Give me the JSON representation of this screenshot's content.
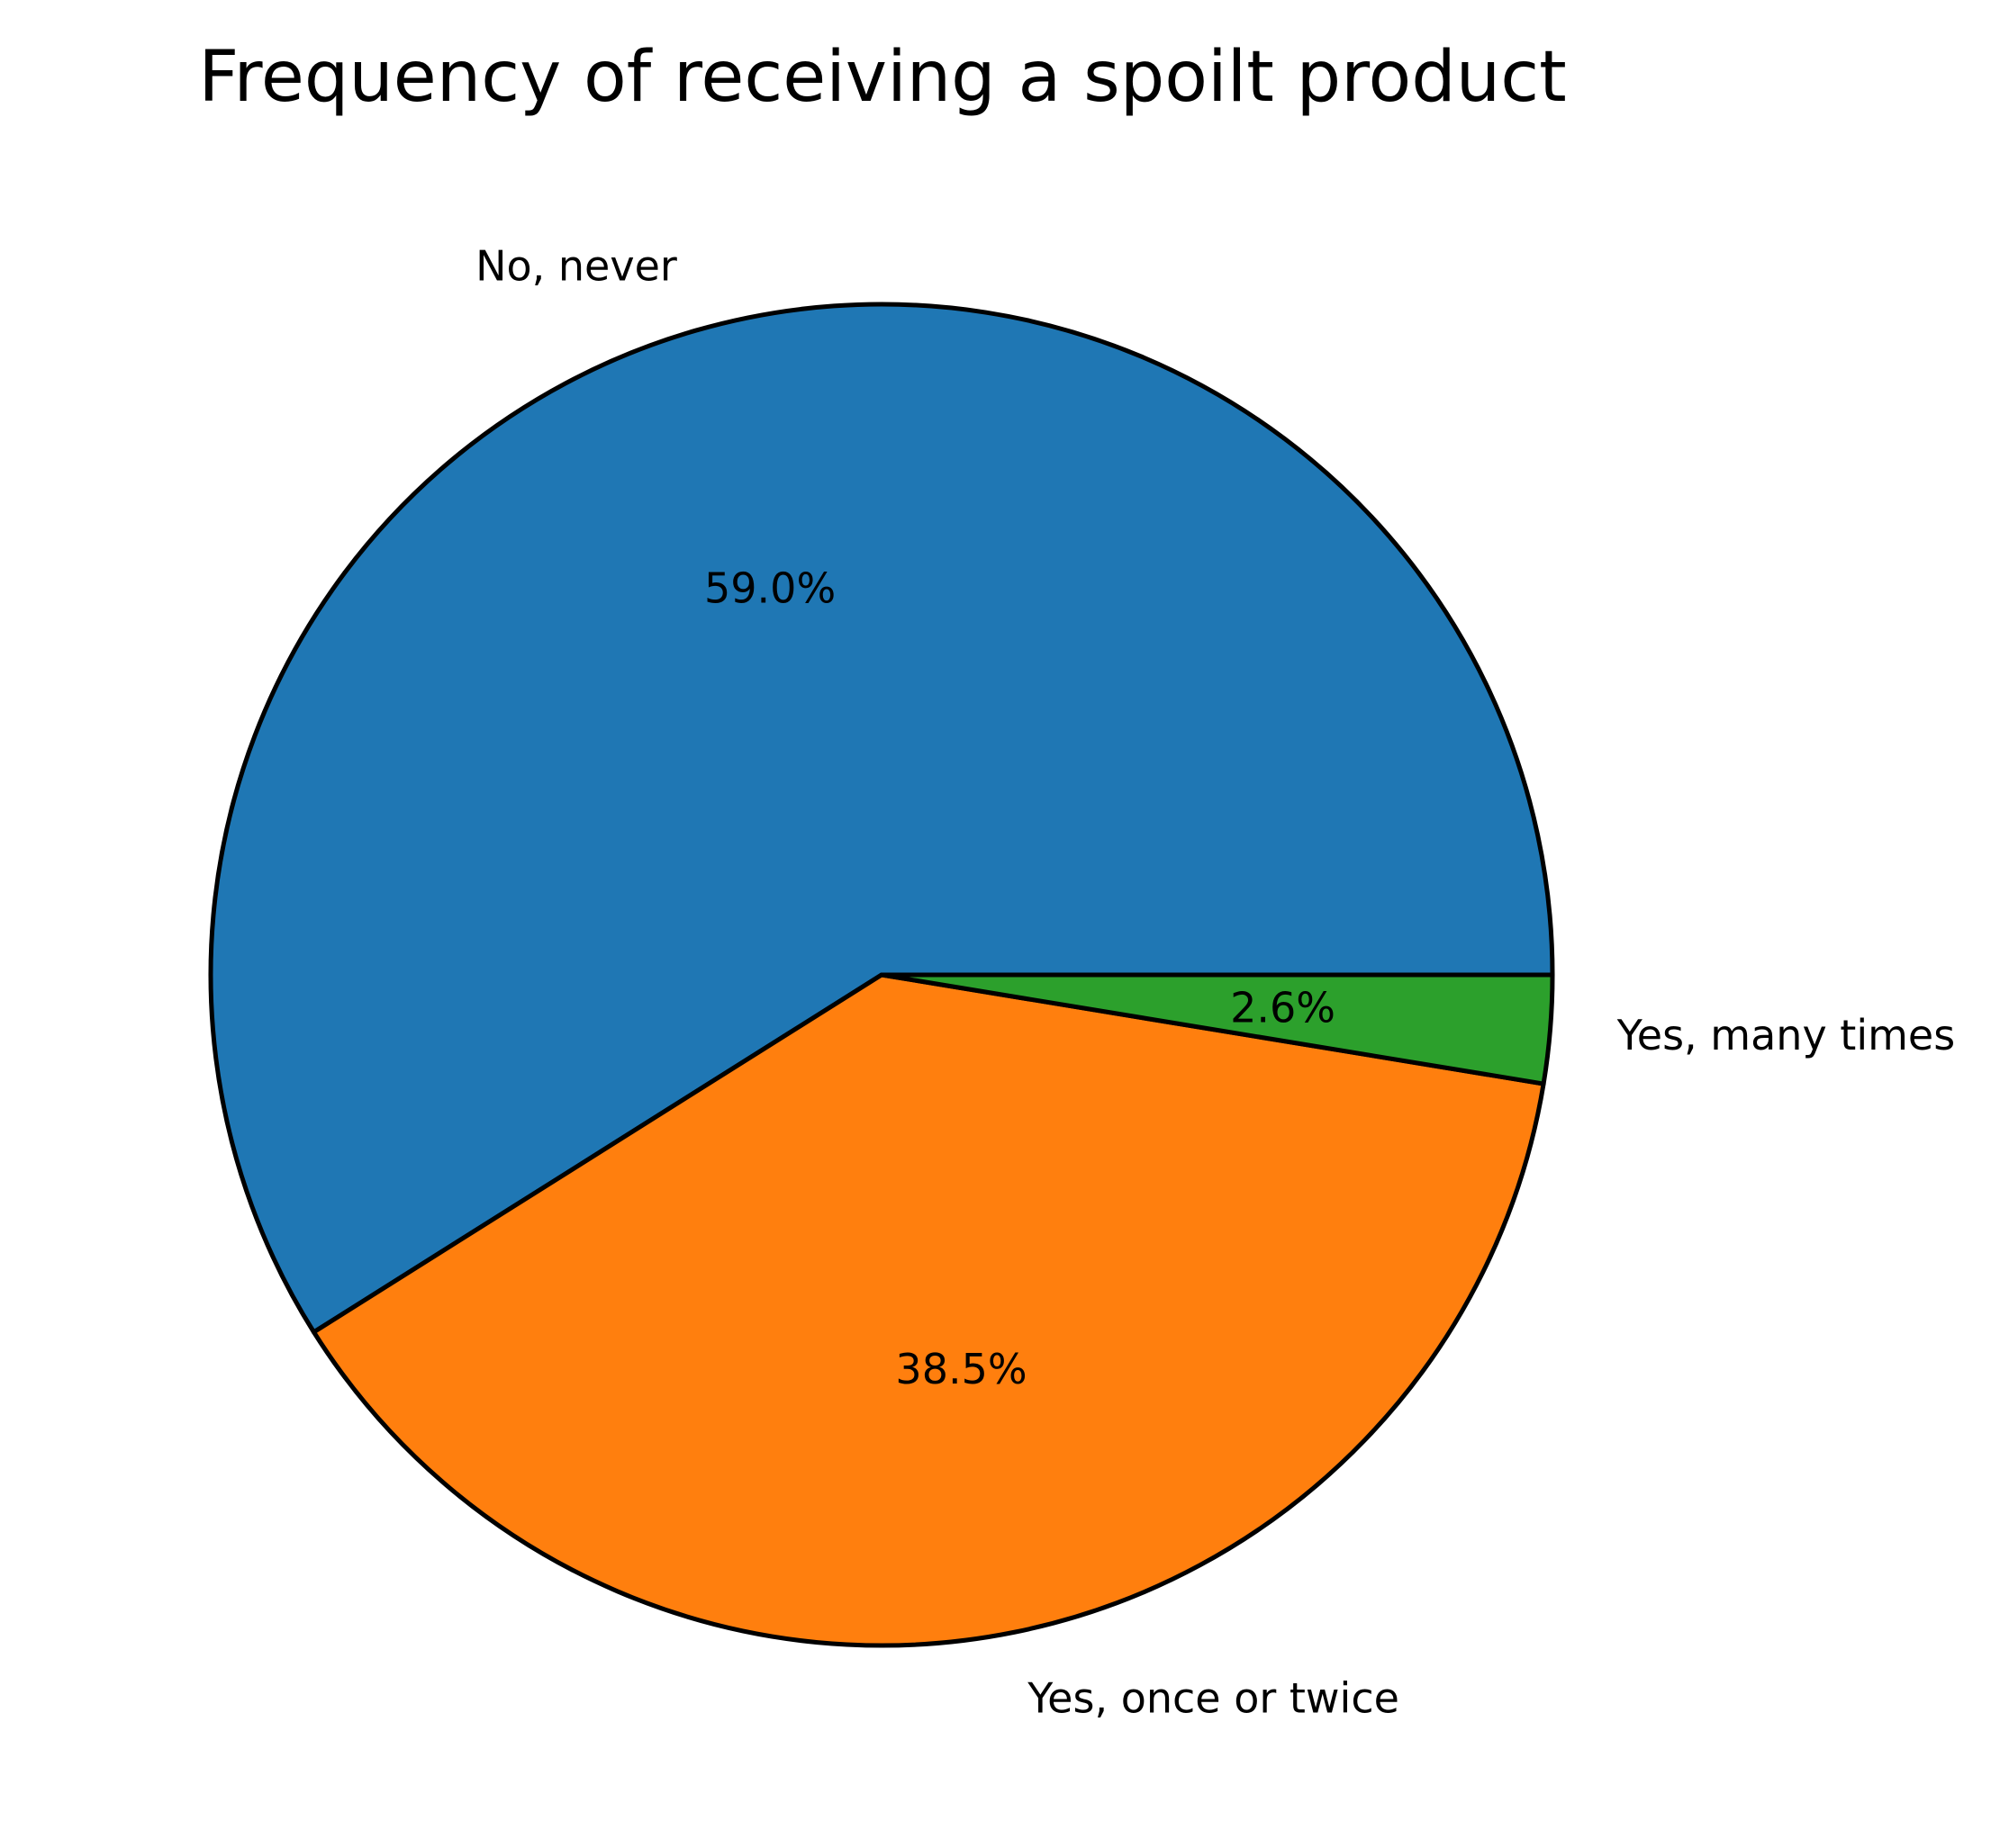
{
  "chart_data": {
    "type": "pie",
    "title": "Frequency of receiving a spoilt product",
    "slices": [
      {
        "label": "No, never",
        "value": 59.0,
        "pct_label": "59.0%",
        "color": "#1f77b4"
      },
      {
        "label": "Yes, once or twice",
        "value": 38.5,
        "pct_label": "38.5%",
        "color": "#ff7f0e"
      },
      {
        "label": "Yes, many times",
        "value": 2.6,
        "pct_label": "2.6%",
        "color": "#2ca02c"
      }
    ],
    "start_angle_deg": 0,
    "direction": "counterclockwise",
    "edge_color": "#000000"
  }
}
